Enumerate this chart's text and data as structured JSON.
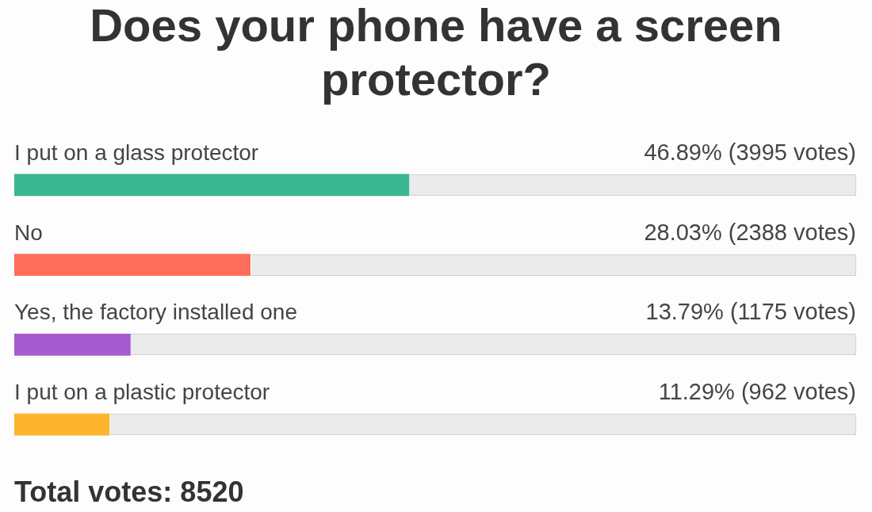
{
  "chart_data": {
    "type": "bar",
    "orientation": "horizontal",
    "title": "Does your phone have a screen protector?",
    "categories": [
      "I put on a glass protector",
      "No",
      "Yes, the factory installed one",
      "I put on a plastic protector"
    ],
    "values": [
      46.89,
      28.03,
      13.79,
      11.29
    ],
    "colors": [
      "#3ab891",
      "#fd6d5b",
      "#a45bd0",
      "#fdb530"
    ],
    "value_labels": [
      "46.89% (3995 votes)",
      "28.03% (2388 votes)",
      "13.79% (1175 votes)",
      "11.29% (962 votes)"
    ],
    "xlim": [
      0,
      100
    ],
    "tick_labels": "y",
    "annotations": [
      "Total votes: 8520"
    ]
  }
}
